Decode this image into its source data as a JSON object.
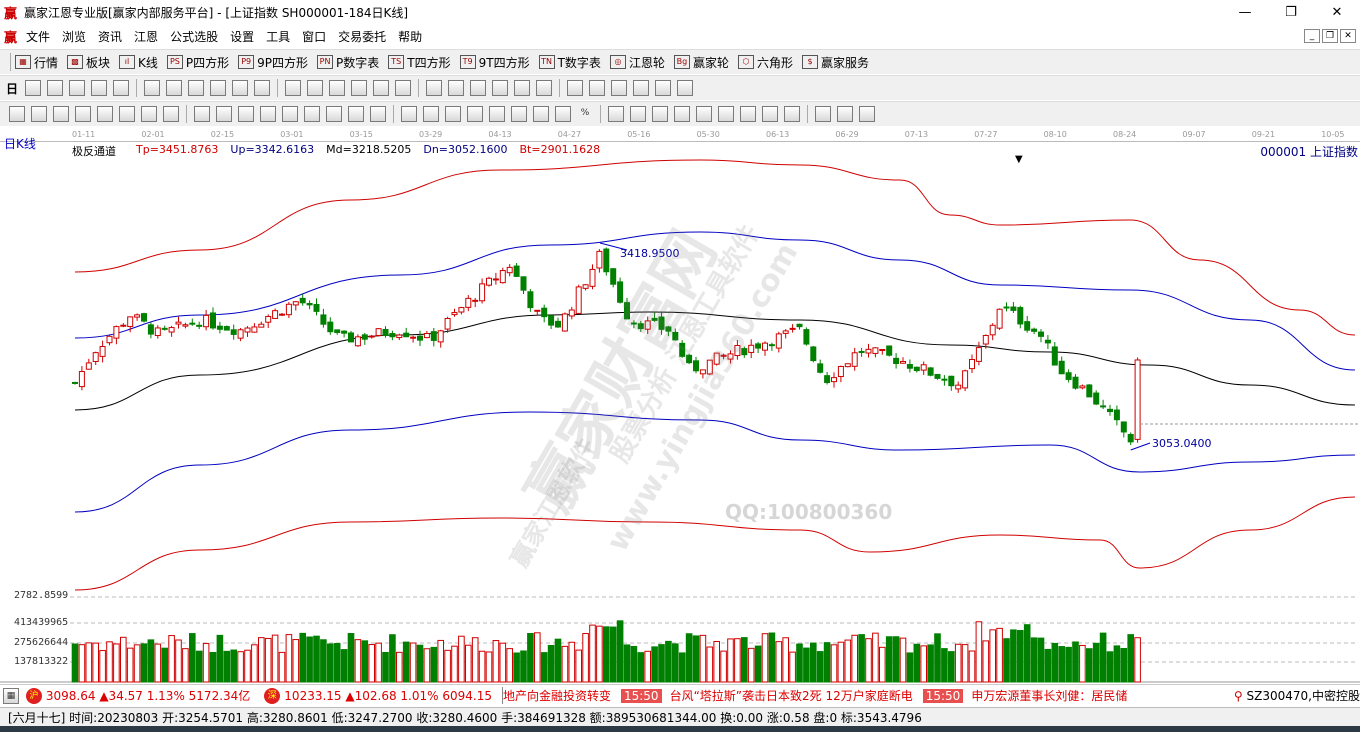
{
  "window": {
    "title": "赢家江恩专业版[赢家内部服务平台] - [上证指数  SH000001-184日K线]",
    "logo": "赢",
    "controls": [
      "—",
      "❐",
      "✕"
    ]
  },
  "menu": {
    "items": [
      "文件",
      "浏览",
      "资讯",
      "江恩",
      "公式选股",
      "设置",
      "工具",
      "窗口",
      "交易委托",
      "帮助"
    ],
    "mdi": [
      "_",
      "❐",
      "✕"
    ]
  },
  "toolbar1": [
    {
      "icon": "grid-icon",
      "glyph": "▦",
      "label": "行情"
    },
    {
      "icon": "blocks-icon",
      "glyph": "▩",
      "label": "板块"
    },
    {
      "icon": "candles-icon",
      "glyph": "ıl",
      "label": "K线"
    },
    {
      "icon": "ps-icon",
      "glyph": "PS",
      "label": "P四方形"
    },
    {
      "icon": "p9-icon",
      "glyph": "P9",
      "label": "9P四方形"
    },
    {
      "icon": "pn-icon",
      "glyph": "PN",
      "label": "P数字表"
    },
    {
      "icon": "ts-icon",
      "glyph": "TS",
      "label": "T四方形"
    },
    {
      "icon": "t9-icon",
      "glyph": "T9",
      "label": "9T四方形"
    },
    {
      "icon": "tn-icon",
      "glyph": "TN",
      "label": "T数字表"
    },
    {
      "icon": "gann-wheel-icon",
      "glyph": "◎",
      "label": "江恩轮"
    },
    {
      "icon": "winner-wheel-icon",
      "glyph": "Bg",
      "label": "赢家轮"
    },
    {
      "icon": "hexagon-icon",
      "glyph": "⬡",
      "label": "六角形"
    },
    {
      "icon": "dollar-icon",
      "glyph": "$",
      "label": "赢家服务"
    }
  ],
  "toolbar2": {
    "first": "日",
    "icons": [
      "period-icon",
      "formula-icon",
      "doc-icon",
      "kline-icon",
      "candle-icon",
      "bar-icon",
      "ruler-icon",
      "first-icon",
      "last-icon",
      "left-icon",
      "right-icon",
      "zoom-in-icon",
      "zoom-out-icon",
      "up-icon",
      "down-icon",
      "diamond-icon",
      "diamond-icon",
      "hand-icon",
      "crosshair-icon",
      "draw-icon",
      "fan-icon",
      "line-icon",
      "ray-icon",
      "calendar-icon",
      "calc-icon",
      "table-icon",
      "book-icon",
      "print-icon",
      "export-icon"
    ]
  },
  "toolbar3": {
    "icons": [
      "line-tool-icon",
      "parallel-icon",
      "fib-icon",
      "gann-fan-icon",
      "arc-icon",
      "circle-icon",
      "cycle-icon",
      "grid-tool-icon",
      "speed-icon",
      "box-icon",
      "text-icon",
      "arrow-icon",
      "channel-icon",
      "mark-icon",
      "square-icon",
      "angle-icon",
      "ellipse-icon",
      "triangle-icon",
      "pitchfork-icon",
      "wave-icon",
      "zigzag-icon",
      "gann-box-icon",
      "spiral-icon",
      "time-icon",
      "price-icon",
      "percent-icon",
      "copy-icon",
      "delete-icon",
      "color-icon",
      "lock-icon",
      "sound-icon",
      "fan2-icon",
      "measure-icon",
      "level-icon",
      "bracket-icon",
      "chart-icon",
      "swatch-icon",
      "infinity-icon"
    ],
    "percent_glyph": "%"
  },
  "chart": {
    "period_label": "日K线",
    "indicator": {
      "name": "极反通道",
      "tp": "Tp=3451.8763",
      "up": "Up=3342.6163",
      "md": "Md=3218.5205",
      "dn": "Dn=3052.1600",
      "bt": "Bt=2901.1628"
    },
    "symbol": "000001  上证指数",
    "dates": [
      "01-11",
      "02-01",
      "02-15",
      "03-01",
      "03-15",
      "03-29",
      "04-13",
      "04-27",
      "05-16",
      "05-30",
      "06-13",
      "06-29",
      "07-13",
      "07-27",
      "08-10",
      "08-24",
      "09-07",
      "09-21",
      "10-05"
    ],
    "high_label": "3418.9500",
    "low_label": "3053.0400",
    "price_axis_label": "2782.8599",
    "volume_axis": [
      "413439965",
      "275626644",
      "137813322"
    ],
    "colors": {
      "up": "#d00000",
      "down": "#008000",
      "band_outer": "#d00000",
      "band_inner": "#0000c0",
      "mid": "#000000"
    },
    "watermarks": [
      "赢家财富网",
      "股票分析 江恩工具软件",
      "www.yingjia360.com",
      "赢家江恩软件",
      "QQ:100800360"
    ]
  },
  "chart_data": {
    "type": "candlestick",
    "close_path": [
      [
        0,
        3168.6
      ],
      [
        2.9,
        3232.1
      ],
      [
        8,
        3299.5
      ],
      [
        12.3,
        3261
      ],
      [
        18.1,
        3290
      ],
      [
        23.9,
        3270.6
      ],
      [
        32.6,
        3328.4
      ],
      [
        38.4,
        3251.4
      ],
      [
        47.1,
        3270.6
      ],
      [
        51.4,
        3251.4
      ],
      [
        57.2,
        3328.4
      ],
      [
        63,
        3395.8
      ],
      [
        67.4,
        3290
      ],
      [
        70.3,
        3280.3
      ],
      [
        76.1,
        3415
      ],
      [
        80.4,
        3290
      ],
      [
        86.2,
        3270.6
      ],
      [
        89.1,
        3193.6
      ],
      [
        96.4,
        3232.1
      ],
      [
        105.1,
        3270.6
      ],
      [
        108.7,
        3174.3
      ],
      [
        113.8,
        3232.1
      ],
      [
        119.6,
        3212.9
      ],
      [
        128.3,
        3164.7
      ],
      [
        132.6,
        3270.6
      ],
      [
        134.1,
        3318.8
      ],
      [
        139.9,
        3261
      ],
      [
        142.8,
        3193.6
      ],
      [
        147.2,
        3145.5
      ],
      [
        153,
        3058.8
      ],
      [
        154.2,
        3212.9
      ]
    ],
    "bands": {
      "tp": [
        [
          0,
          3382.4
        ],
        [
          18.1,
          3424.7
        ],
        [
          39.9,
          3521
        ],
        [
          61.6,
          3578.8
        ],
        [
          90.6,
          3598
        ],
        [
          105.1,
          3588.4
        ],
        [
          119.6,
          3559.5
        ],
        [
          126.8,
          3492.1
        ],
        [
          134.1,
          3472.9
        ],
        [
          152.9,
          3482.5
        ],
        [
          163,
          3405.5
        ],
        [
          177.5,
          3309.2
        ],
        [
          185.5,
          3261
        ]
      ],
      "up": [
        [
          0,
          3255.2
        ],
        [
          18.1,
          3299.5
        ],
        [
          47.1,
          3376.6
        ],
        [
          68.8,
          3434.4
        ],
        [
          90.6,
          3459.4
        ],
        [
          105.1,
          3444
        ],
        [
          119.6,
          3405.5
        ],
        [
          134.1,
          3357.3
        ],
        [
          152.9,
          3347.7
        ],
        [
          170.3,
          3290
        ],
        [
          185.5,
          3193.6
        ]
      ],
      "md": [
        [
          0,
          3116.6
        ],
        [
          18.1,
          3184
        ],
        [
          47.1,
          3261
        ],
        [
          68.8,
          3299.5
        ],
        [
          83.3,
          3305.3
        ],
        [
          105.1,
          3290
        ],
        [
          126.8,
          3241.8
        ],
        [
          141.3,
          3228.3
        ],
        [
          155.8,
          3203.2
        ],
        [
          170.3,
          3164.7
        ],
        [
          185.5,
          3126.2
        ]
      ],
      "dn": [
        [
          0,
          2920.1
        ],
        [
          18.1,
          3010.6
        ],
        [
          39.9,
          3078
        ],
        [
          65.9,
          3112.7
        ],
        [
          90.6,
          3097.3
        ],
        [
          105.1,
          3058.8
        ],
        [
          119.6,
          3039.5
        ],
        [
          141.3,
          3049.2
        ],
        [
          154.3,
          2997.2
        ],
        [
          170.3,
          3016.4
        ],
        [
          185.5,
          3030
        ]
      ],
      "bt": [
        [
          0,
          2769.9
        ],
        [
          18.1,
          2846.9
        ],
        [
          39.9,
          2900.9
        ],
        [
          61.6,
          2908.6
        ],
        [
          83.3,
          2900.9
        ],
        [
          105.1,
          2885.5
        ],
        [
          115.2,
          2843.1
        ],
        [
          134.1,
          2875.9
        ],
        [
          148.6,
          2866.2
        ],
        [
          154.3,
          2812.3
        ],
        [
          170.3,
          2885.5
        ],
        [
          185.5,
          2949
        ]
      ]
    },
    "last_close_line": 3243
  },
  "ticker": {
    "sh": {
      "badge": "沪",
      "text": "3098.64 ▲34.57 1.13% 5172.34亿"
    },
    "sz": {
      "badge": "深",
      "text": "10233.15 ▲102.68 1.01% 6094.15"
    },
    "news": [
      {
        "time": "",
        "text": "地产向金融投资转变"
      },
      {
        "time": "15:50",
        "text": "台风“塔拉斯”袭击日本致2死 12万户家庭断电"
      },
      {
        "time": "15:50",
        "text": "申万宏源董事长刘健：居民储"
      }
    ],
    "alert": "SZ300470,中密控股"
  },
  "status": "[六月十七] 时间:20230803 开:3254.5701 高:3280.8601 低:3247.2700 收:3280.4600 手:384691328 额:389530681344.00 换:0.00 涨:0.58 盘:0 标:3543.4796"
}
